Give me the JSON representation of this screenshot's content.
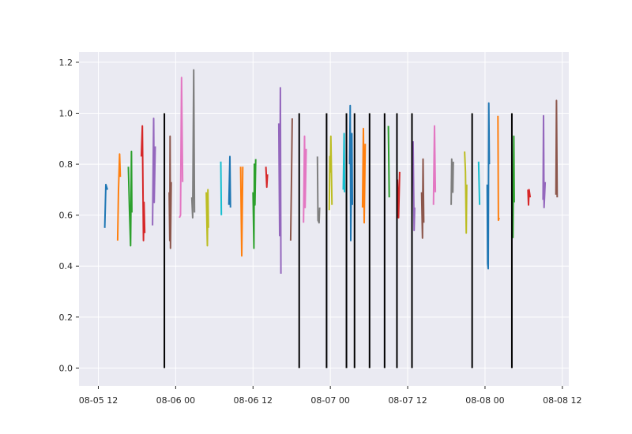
{
  "chart_data": {
    "type": "line",
    "title": "",
    "xlabel": "",
    "ylabel": "",
    "grid": true,
    "style": "seaborn-darkgrid",
    "colors": {
      "background": "#eaeaf2",
      "grid": "#ffffff",
      "vline": "#000000",
      "palette": [
        "#1f77b4",
        "#ff7f0e",
        "#2ca02c",
        "#d62728",
        "#9467bd",
        "#8c564b",
        "#e377c2",
        "#7f7f7f",
        "#bcbd22",
        "#17becf"
      ]
    },
    "xlim": [
      "2023-08-05 09:00",
      "2023-08-08 13:00"
    ],
    "ylim": [
      -0.07,
      1.24
    ],
    "x_ticks": [
      {
        "label": "08-05 12",
        "value": "2023-08-05 12:00"
      },
      {
        "label": "08-06 00",
        "value": "2023-08-06 00:00"
      },
      {
        "label": "08-06 12",
        "value": "2023-08-06 12:00"
      },
      {
        "label": "08-07 00",
        "value": "2023-08-07 00:00"
      },
      {
        "label": "08-07 12",
        "value": "2023-08-07 12:00"
      },
      {
        "label": "08-08 00",
        "value": "2023-08-08 00:00"
      },
      {
        "label": "08-08 12",
        "value": "2023-08-08 12:00"
      }
    ],
    "y_ticks": [
      {
        "label": "0.0",
        "value": 0.0
      },
      {
        "label": "0.2",
        "value": 0.2
      },
      {
        "label": "0.4",
        "value": 0.4
      },
      {
        "label": "0.6",
        "value": 0.6
      },
      {
        "label": "0.8",
        "value": 0.8
      },
      {
        "label": "1.0",
        "value": 1.0
      },
      {
        "label": "1.2",
        "value": 1.2
      }
    ],
    "vertical_lines": {
      "y_range": [
        0,
        1
      ],
      "x": [
        "2023-08-05 22:15",
        "2023-08-06 19:10",
        "2023-08-06 23:25",
        "2023-08-07 02:30",
        "2023-08-07 03:45",
        "2023-08-07 06:05",
        "2023-08-07 08:25",
        "2023-08-07 10:20",
        "2023-08-07 12:40",
        "2023-08-07 22:00",
        "2023-08-08 04:10"
      ]
    },
    "series": [
      {
        "color_index": 0,
        "points": [
          [
            "2023-08-05 13:00",
            0.55
          ],
          [
            "2023-08-05 13:10",
            0.72
          ],
          [
            "2023-08-05 13:25",
            0.7
          ]
        ]
      },
      {
        "color_index": 1,
        "points": [
          [
            "2023-08-05 15:00",
            0.5
          ],
          [
            "2023-08-05 15:08",
            0.7
          ],
          [
            "2023-08-05 15:18",
            0.84
          ],
          [
            "2023-08-05 15:25",
            0.75
          ]
        ]
      },
      {
        "color_index": 2,
        "points": [
          [
            "2023-08-05 16:40",
            0.79
          ],
          [
            "2023-08-05 16:50",
            0.62
          ],
          [
            "2023-08-05 17:00",
            0.48
          ],
          [
            "2023-08-05 17:08",
            0.85
          ],
          [
            "2023-08-05 17:12",
            0.61
          ]
        ]
      },
      {
        "color_index": 3,
        "points": [
          [
            "2023-08-05 18:40",
            0.83
          ],
          [
            "2023-08-05 18:50",
            0.95
          ],
          [
            "2023-08-05 19:00",
            0.5
          ],
          [
            "2023-08-05 19:05",
            0.65
          ],
          [
            "2023-08-05 19:12",
            0.53
          ]
        ]
      },
      {
        "color_index": 4,
        "points": [
          [
            "2023-08-05 20:25",
            0.56
          ],
          [
            "2023-08-05 20:35",
            0.98
          ],
          [
            "2023-08-05 20:40",
            0.65
          ],
          [
            "2023-08-05 20:50",
            0.87
          ]
        ]
      },
      {
        "color_index": 5,
        "points": [
          [
            "2023-08-05 23:00",
            0.69
          ],
          [
            "2023-08-05 23:05",
            0.5
          ],
          [
            "2023-08-05 23:08",
            0.91
          ],
          [
            "2023-08-05 23:12",
            0.47
          ],
          [
            "2023-08-05 23:18",
            0.73
          ]
        ]
      },
      {
        "color_index": 6,
        "points": [
          [
            "2023-08-06 00:35",
            0.59
          ],
          [
            "2023-08-06 00:45",
            0.6
          ],
          [
            "2023-08-06 00:55",
            1.14
          ],
          [
            "2023-08-06 01:05",
            0.73
          ]
        ]
      },
      {
        "color_index": 7,
        "points": [
          [
            "2023-08-06 02:30",
            0.67
          ],
          [
            "2023-08-06 02:38",
            0.59
          ],
          [
            "2023-08-06 02:48",
            1.17
          ],
          [
            "2023-08-06 02:55",
            0.61
          ]
        ]
      },
      {
        "color_index": 8,
        "points": [
          [
            "2023-08-06 04:45",
            0.69
          ],
          [
            "2023-08-06 04:55",
            0.48
          ],
          [
            "2023-08-06 05:00",
            0.7
          ],
          [
            "2023-08-06 05:05",
            0.55
          ]
        ]
      },
      {
        "color_index": 9,
        "points": [
          [
            "2023-08-06 07:00",
            0.81
          ],
          [
            "2023-08-06 07:05",
            0.6
          ]
        ]
      },
      {
        "color_index": 0,
        "points": [
          [
            "2023-08-06 08:15",
            0.64
          ],
          [
            "2023-08-06 08:25",
            0.83
          ],
          [
            "2023-08-06 08:30",
            0.63
          ]
        ]
      },
      {
        "color_index": 1,
        "points": [
          [
            "2023-08-06 10:05",
            0.79
          ],
          [
            "2023-08-06 10:15",
            0.44
          ],
          [
            "2023-08-06 10:25",
            0.79
          ]
        ]
      },
      {
        "color_index": 2,
        "points": [
          [
            "2023-08-06 12:00",
            0.69
          ],
          [
            "2023-08-06 12:08",
            0.47
          ],
          [
            "2023-08-06 12:12",
            0.8
          ],
          [
            "2023-08-06 12:18",
            0.64
          ],
          [
            "2023-08-06 12:25",
            0.82
          ]
        ]
      },
      {
        "color_index": 3,
        "points": [
          [
            "2023-08-06 14:00",
            0.79
          ],
          [
            "2023-08-06 14:08",
            0.71
          ],
          [
            "2023-08-06 14:15",
            0.76
          ]
        ]
      },
      {
        "color_index": 4,
        "points": [
          [
            "2023-08-06 16:00",
            0.96
          ],
          [
            "2023-08-06 16:08",
            0.52
          ],
          [
            "2023-08-06 16:15",
            1.1
          ],
          [
            "2023-08-06 16:20",
            0.37
          ]
        ]
      },
      {
        "color_index": 5,
        "points": [
          [
            "2023-08-06 17:50",
            0.5
          ],
          [
            "2023-08-06 17:58",
            0.72
          ],
          [
            "2023-08-06 18:05",
            0.98
          ]
        ]
      },
      {
        "color_index": 6,
        "points": [
          [
            "2023-08-06 19:50",
            0.57
          ],
          [
            "2023-08-06 20:00",
            0.91
          ],
          [
            "2023-08-06 20:05",
            0.63
          ],
          [
            "2023-08-06 20:15",
            0.86
          ]
        ]
      },
      {
        "color_index": 7,
        "points": [
          [
            "2023-08-06 22:00",
            0.83
          ],
          [
            "2023-08-06 22:05",
            0.58
          ],
          [
            "2023-08-06 22:15",
            0.57
          ],
          [
            "2023-08-06 22:20",
            0.63
          ]
        ]
      },
      {
        "color_index": 8,
        "points": [
          [
            "2023-08-06 23:50",
            0.62
          ],
          [
            "2023-08-06 23:55",
            0.83
          ],
          [
            "2023-08-07 00:00",
            0.77
          ],
          [
            "2023-08-07 00:05",
            0.91
          ],
          [
            "2023-08-07 00:15",
            0.64
          ]
        ]
      },
      {
        "color_index": 9,
        "points": [
          [
            "2023-08-07 02:00",
            0.7
          ],
          [
            "2023-08-07 02:08",
            0.92
          ],
          [
            "2023-08-07 02:12",
            0.69
          ]
        ]
      },
      {
        "color_index": 0,
        "points": [
          [
            "2023-08-07 03:00",
            0.8
          ],
          [
            "2023-08-07 03:05",
            1.03
          ],
          [
            "2023-08-07 03:10",
            0.5
          ],
          [
            "2023-08-07 03:20",
            0.92
          ],
          [
            "2023-08-07 03:25",
            0.64
          ]
        ]
      },
      {
        "color_index": 1,
        "points": [
          [
            "2023-08-07 05:00",
            0.63
          ],
          [
            "2023-08-07 05:08",
            0.94
          ],
          [
            "2023-08-07 05:15",
            0.57
          ],
          [
            "2023-08-07 05:25",
            0.88
          ]
        ]
      },
      {
        "color_index": 2,
        "points": [
          [
            "2023-08-07 09:00",
            0.95
          ],
          [
            "2023-08-07 09:08",
            0.67
          ]
        ]
      },
      {
        "color_index": 3,
        "points": [
          [
            "2023-08-07 10:25",
            0.74
          ],
          [
            "2023-08-07 10:35",
            0.59
          ],
          [
            "2023-08-07 10:45",
            0.77
          ]
        ]
      },
      {
        "color_index": 4,
        "points": [
          [
            "2023-08-07 12:50",
            0.89
          ],
          [
            "2023-08-07 13:00",
            0.54
          ],
          [
            "2023-08-07 13:05",
            0.63
          ]
        ]
      },
      {
        "color_index": 5,
        "points": [
          [
            "2023-08-07 14:10",
            0.69
          ],
          [
            "2023-08-07 14:18",
            0.51
          ],
          [
            "2023-08-07 14:23",
            0.82
          ],
          [
            "2023-08-07 14:30",
            0.57
          ]
        ]
      },
      {
        "color_index": 6,
        "points": [
          [
            "2023-08-07 16:00",
            0.64
          ],
          [
            "2023-08-07 16:10",
            0.95
          ],
          [
            "2023-08-07 16:18",
            0.69
          ]
        ]
      },
      {
        "color_index": 7,
        "points": [
          [
            "2023-08-07 18:45",
            0.64
          ],
          [
            "2023-08-07 18:50",
            0.82
          ],
          [
            "2023-08-07 19:00",
            0.69
          ],
          [
            "2023-08-07 19:05",
            0.81
          ]
        ]
      },
      {
        "color_index": 8,
        "points": [
          [
            "2023-08-07 20:50",
            0.85
          ],
          [
            "2023-08-07 20:58",
            0.77
          ],
          [
            "2023-08-07 21:05",
            0.53
          ],
          [
            "2023-08-07 21:10",
            0.72
          ]
        ]
      },
      {
        "color_index": 9,
        "points": [
          [
            "2023-08-07 23:00",
            0.81
          ],
          [
            "2023-08-07 23:10",
            0.64
          ]
        ]
      },
      {
        "color_index": 0,
        "points": [
          [
            "2023-08-08 00:20",
            0.72
          ],
          [
            "2023-08-08 00:25",
            0.41
          ],
          [
            "2023-08-08 00:30",
            0.39
          ],
          [
            "2023-08-08 00:35",
            1.04
          ],
          [
            "2023-08-08 00:40",
            0.8
          ]
        ]
      },
      {
        "color_index": 1,
        "points": [
          [
            "2023-08-08 02:00",
            0.99
          ],
          [
            "2023-08-08 02:05",
            0.58
          ],
          [
            "2023-08-08 02:12",
            0.59
          ]
        ]
      },
      {
        "color_index": 2,
        "points": [
          [
            "2023-08-08 04:20",
            0.51
          ],
          [
            "2023-08-08 04:28",
            0.91
          ],
          [
            "2023-08-08 04:32",
            0.65
          ]
        ]
      },
      {
        "color_index": 3,
        "points": [
          [
            "2023-08-08 06:40",
            0.7
          ],
          [
            "2023-08-08 06:45",
            0.64
          ],
          [
            "2023-08-08 06:50",
            0.7
          ],
          [
            "2023-08-08 07:00",
            0.67
          ]
        ]
      },
      {
        "color_index": 4,
        "points": [
          [
            "2023-08-08 09:00",
            0.66
          ],
          [
            "2023-08-08 09:05",
            0.99
          ],
          [
            "2023-08-08 09:10",
            0.63
          ],
          [
            "2023-08-08 09:20",
            0.73
          ]
        ]
      },
      {
        "color_index": 5,
        "points": [
          [
            "2023-08-08 11:00",
            0.68
          ],
          [
            "2023-08-08 11:05",
            1.05
          ],
          [
            "2023-08-08 11:12",
            0.67
          ]
        ]
      }
    ]
  }
}
